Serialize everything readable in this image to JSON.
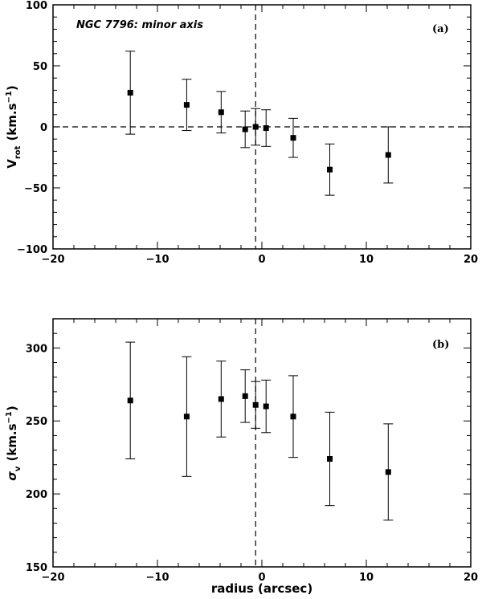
{
  "chart_data": [
    {
      "type": "scatter",
      "panel_label": "(a)",
      "annotation": "NGC 7796: minor axis",
      "ylabel": "V",
      "ylabel_sub": "rot",
      "ylabel_unit": "(km.s",
      "ylabel_unit_sup": "−1",
      "ylabel_unit_close": ")",
      "xlim": [
        -20,
        20
      ],
      "ylim": [
        -100,
        100
      ],
      "xticks": [
        -20,
        -10,
        0,
        10,
        20
      ],
      "yticks": [
        -100,
        -50,
        0,
        50,
        100
      ],
      "xtick_labels": [
        "−20",
        "−10",
        "0",
        "10",
        "20"
      ],
      "ytick_labels": [
        "−100",
        "−50",
        "0",
        "50",
        "100"
      ],
      "hline": 0,
      "vline": -0.6,
      "points": [
        {
          "x": -12.6,
          "y": 28,
          "err_low": 34,
          "err_high": 34
        },
        {
          "x": -7.2,
          "y": 18,
          "err_low": 21,
          "err_high": 21
        },
        {
          "x": -3.9,
          "y": 12,
          "err_low": 17,
          "err_high": 17
        },
        {
          "x": -1.6,
          "y": -2,
          "err_low": 15,
          "err_high": 15
        },
        {
          "x": -0.6,
          "y": 0,
          "err_low": 15,
          "err_high": 15
        },
        {
          "x": 0.4,
          "y": -1,
          "err_low": 15,
          "err_high": 15
        },
        {
          "x": 3.0,
          "y": -9,
          "err_low": 16,
          "err_high": 16
        },
        {
          "x": 6.5,
          "y": -35,
          "err_low": 21,
          "err_high": 21
        },
        {
          "x": 12.1,
          "y": -23,
          "err_low": 23,
          "err_high": 23
        }
      ]
    },
    {
      "type": "scatter",
      "panel_label": "(b)",
      "ylabel": "σ",
      "ylabel_sub": "v",
      "ylabel_unit": "(km.s",
      "ylabel_unit_sup": "−1",
      "ylabel_unit_close": ")",
      "xlabel": "radius (arcsec)",
      "xlim": [
        -20,
        20
      ],
      "ylim": [
        150,
        320
      ],
      "xticks": [
        -20,
        -10,
        0,
        10,
        20
      ],
      "yticks": [
        150,
        200,
        250,
        300
      ],
      "xtick_labels": [
        "−20",
        "−10",
        "0",
        "10",
        "20"
      ],
      "ytick_labels": [
        "150",
        "200",
        "250",
        "300"
      ],
      "vline": -0.6,
      "points": [
        {
          "x": -12.6,
          "y": 264,
          "err_low": 40,
          "err_high": 40
        },
        {
          "x": -7.2,
          "y": 253,
          "err_low": 41,
          "err_high": 41
        },
        {
          "x": -3.9,
          "y": 265,
          "err_low": 26,
          "err_high": 26
        },
        {
          "x": -1.6,
          "y": 267,
          "err_low": 18,
          "err_high": 18
        },
        {
          "x": -0.6,
          "y": 261,
          "err_low": 16,
          "err_high": 16
        },
        {
          "x": 0.4,
          "y": 260,
          "err_low": 18,
          "err_high": 18
        },
        {
          "x": 3.0,
          "y": 253,
          "err_low": 28,
          "err_high": 28
        },
        {
          "x": 6.5,
          "y": 224,
          "err_low": 32,
          "err_high": 32
        },
        {
          "x": 12.1,
          "y": 215,
          "err_low": 33,
          "err_high": 33
        }
      ]
    }
  ]
}
